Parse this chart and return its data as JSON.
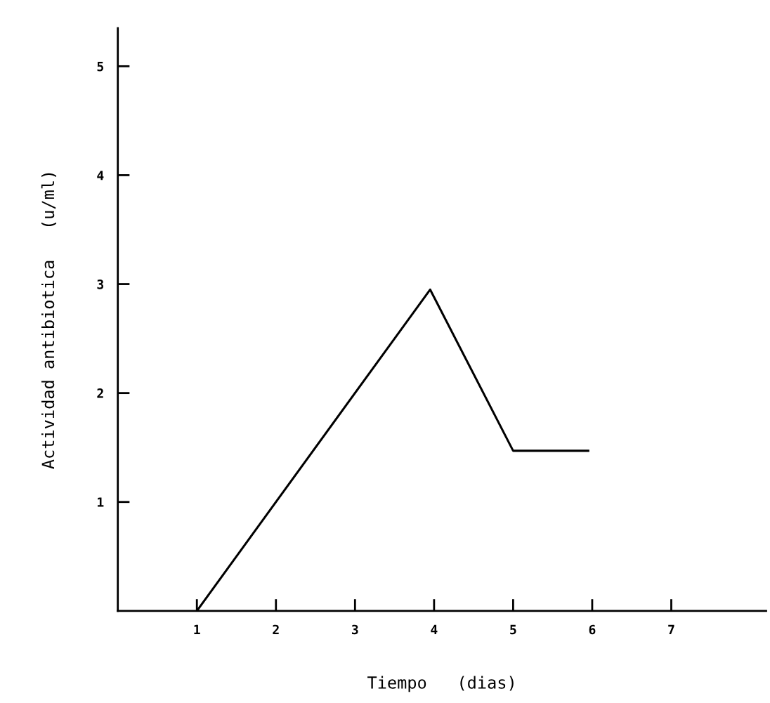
{
  "chart_data": {
    "type": "line",
    "xlabel": "Tiempo   (dias)",
    "ylabel": "Actividad antibiotica   (u/ml)",
    "x": [
      1,
      3.95,
      5,
      5.95
    ],
    "series": [
      {
        "color": "#000000",
        "values": [
          0,
          2.95,
          1.47,
          1.47
        ]
      }
    ],
    "xlim": [
      0,
      8.2
    ],
    "ylim": [
      0,
      5.35
    ],
    "xticks": [
      1,
      2,
      3,
      4,
      5,
      6,
      7
    ],
    "yticks": [
      1,
      2,
      3,
      4,
      5
    ],
    "grid": false,
    "marker": "none",
    "line_style": "solid"
  }
}
